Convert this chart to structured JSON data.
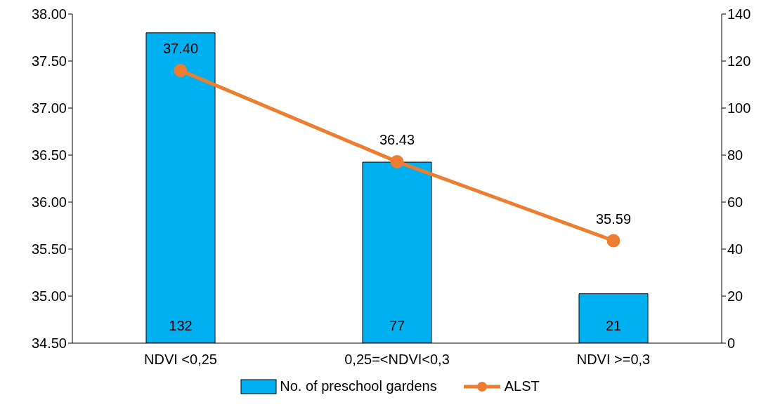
{
  "chart_data": {
    "type": "bar",
    "categories": [
      "NDVI <0,25",
      "0,25=<NDVI<0,3",
      "NDVI >=0,3"
    ],
    "series": [
      {
        "name": "No. of preschool gardens",
        "axis": "y2",
        "color": "#00b0f0",
        "values": [
          132,
          77,
          21
        ],
        "value_labels": [
          "132",
          "77",
          "21"
        ]
      },
      {
        "name": "ALST",
        "type": "line",
        "color": "#ed7d31",
        "values": [
          37.4,
          36.43,
          35.59
        ],
        "value_labels": [
          "37.40",
          "36.43",
          "35.59"
        ],
        "marker": "circle",
        "line_style": "solid"
      }
    ],
    "ylim": [
      34.5,
      38
    ],
    "yticks": [
      {
        "value": 34.5,
        "label": "34.50"
      },
      {
        "value": 35,
        "label": "35.00"
      },
      {
        "value": 35.5,
        "label": "35.50"
      },
      {
        "value": 36,
        "label": "36.00"
      },
      {
        "value": 36.5,
        "label": "36.50"
      },
      {
        "value": 37,
        "label": "37.00"
      },
      {
        "value": 37.5,
        "label": "37.50"
      },
      {
        "value": 38,
        "label": "38.00"
      }
    ],
    "y2lim": [
      0,
      140
    ],
    "y2ticks": [
      0,
      20,
      40,
      60,
      80,
      100,
      120,
      140
    ],
    "grid": false,
    "legend": "bottom"
  }
}
